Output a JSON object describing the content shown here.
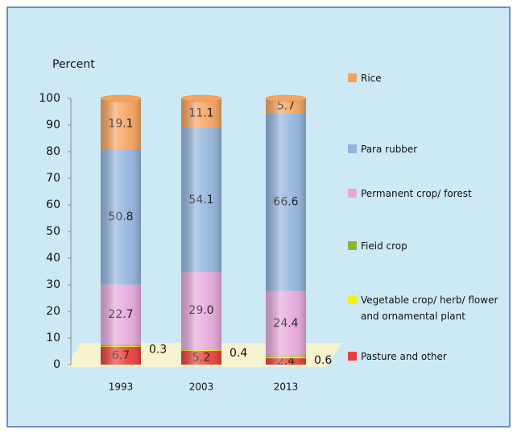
{
  "chart_data": {
    "type": "stacked_bar",
    "y_label": "Percent",
    "categories": [
      "1993",
      "2003",
      "2013"
    ],
    "series": [
      {
        "name": "Pasture and other",
        "color": "#e8413c",
        "values": [
          6.7,
          5.2,
          2.4
        ]
      },
      {
        "name": "Vegetable crop/ herb/ flower and ornamental plant",
        "color": "#f2f20a",
        "values": [
          0.3,
          0.4,
          0.6
        ]
      },
      {
        "name": "Fieid crop",
        "color": "#8db33a",
        "values": [
          0.4,
          0.2,
          0.3
        ]
      },
      {
        "name": "Permanent crop/ forest",
        "color": "#e6a8dc",
        "values": [
          22.7,
          29.0,
          24.4
        ],
        "value_labels": [
          "22.7",
          "29.0",
          "24.4"
        ]
      },
      {
        "name": "Para rubber",
        "color": "#93b3dc",
        "values": [
          50.8,
          54.1,
          66.6
        ]
      },
      {
        "name": "Rice",
        "color": "#f5a35e",
        "values": [
          19.1,
          11.1,
          5.7
        ]
      }
    ],
    "ylim": [
      0,
      100
    ],
    "yticks": [
      0,
      10,
      20,
      30,
      40,
      50,
      60,
      70,
      80,
      90,
      100
    ]
  }
}
